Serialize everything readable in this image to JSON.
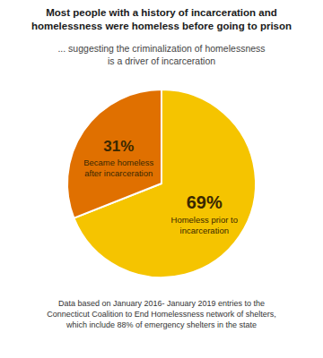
{
  "chart_data": {
    "type": "pie",
    "title": "Most people with a history of incarceration and\nhomelessness were homeless before going to prison",
    "subtitle": "... suggesting the criminalization of homelessness\nis a driver of incarceration",
    "annotations": [
      "Data based on January 2016- January 2019 entries to the\nConnecticut Coalition to End Homelessness network of shelters,\nwhich include 88% of emergency shelters in the state"
    ],
    "categories": [
      "Homeless prior to\nincarceration",
      "Became homeless\nafter incarceration"
    ],
    "values": [
      69,
      31
    ],
    "value_labels": [
      "69%",
      "31%"
    ],
    "data_labels": true,
    "colors": [
      "#F5C400",
      "#E07000"
    ]
  }
}
